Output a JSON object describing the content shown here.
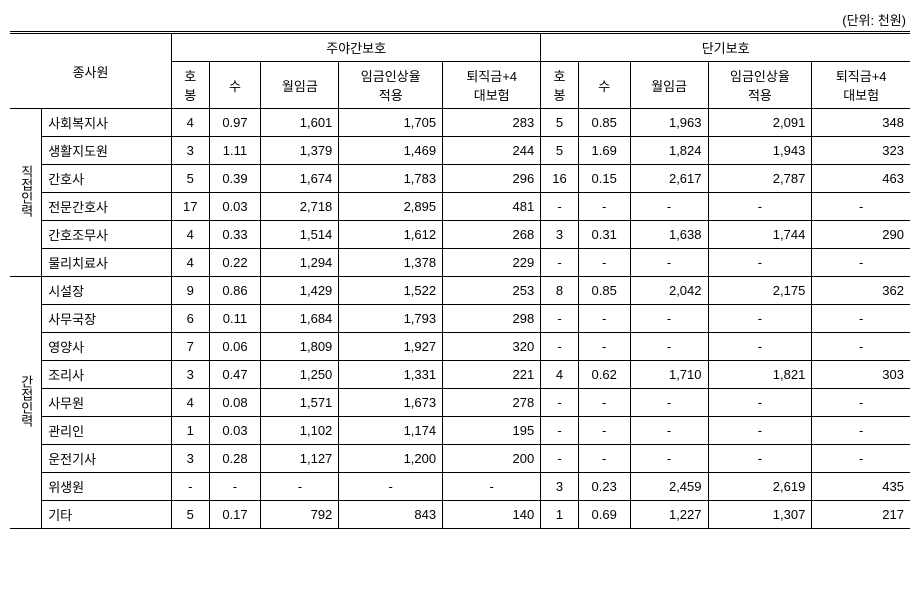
{
  "unit_label": "(단위: 천원)",
  "headers": {
    "staff": "종사원",
    "group1": "주야간보호",
    "group2": "단기보호",
    "hb": "호봉",
    "hb_line1": "호",
    "hb_line2": "봉",
    "su": "수",
    "wage": "월임금",
    "adj": "임금인상율적용",
    "adj_line1": "임금인상율",
    "adj_line2": "적용",
    "ret": "퇴직금+4대보험",
    "ret_line1": "퇴직금+4",
    "ret_line2": "대보험"
  },
  "categories": {
    "direct": "직접인력",
    "indirect": "간접인력"
  },
  "rows": [
    {
      "cat": "direct",
      "role": "사회복지사",
      "g1": {
        "hb": "4",
        "su": "0.97",
        "wage": "1,601",
        "adj": "1,705",
        "ret": "283"
      },
      "g2": {
        "hb": "5",
        "su": "0.85",
        "wage": "1,963",
        "adj": "2,091",
        "ret": "348"
      }
    },
    {
      "cat": "direct",
      "role": "생활지도원",
      "g1": {
        "hb": "3",
        "su": "1.11",
        "wage": "1,379",
        "adj": "1,469",
        "ret": "244"
      },
      "g2": {
        "hb": "5",
        "su": "1.69",
        "wage": "1,824",
        "adj": "1,943",
        "ret": "323"
      }
    },
    {
      "cat": "direct",
      "role": "간호사",
      "g1": {
        "hb": "5",
        "su": "0.39",
        "wage": "1,674",
        "adj": "1,783",
        "ret": "296"
      },
      "g2": {
        "hb": "16",
        "su": "0.15",
        "wage": "2,617",
        "adj": "2,787",
        "ret": "463"
      }
    },
    {
      "cat": "direct",
      "role": "전문간호사",
      "g1": {
        "hb": "17",
        "su": "0.03",
        "wage": "2,718",
        "adj": "2,895",
        "ret": "481"
      },
      "g2": {
        "hb": "-",
        "su": "-",
        "wage": "-",
        "adj": "-",
        "ret": "-"
      }
    },
    {
      "cat": "direct",
      "role": "간호조무사",
      "g1": {
        "hb": "4",
        "su": "0.33",
        "wage": "1,514",
        "adj": "1,612",
        "ret": "268"
      },
      "g2": {
        "hb": "3",
        "su": "0.31",
        "wage": "1,638",
        "adj": "1,744",
        "ret": "290"
      }
    },
    {
      "cat": "direct",
      "role": "물리치료사",
      "g1": {
        "hb": "4",
        "su": "0.22",
        "wage": "1,294",
        "adj": "1,378",
        "ret": "229"
      },
      "g2": {
        "hb": "-",
        "su": "-",
        "wage": "-",
        "adj": "-",
        "ret": "-"
      }
    },
    {
      "cat": "indirect",
      "role": "시설장",
      "g1": {
        "hb": "9",
        "su": "0.86",
        "wage": "1,429",
        "adj": "1,522",
        "ret": "253"
      },
      "g2": {
        "hb": "8",
        "su": "0.85",
        "wage": "2,042",
        "adj": "2,175",
        "ret": "362"
      }
    },
    {
      "cat": "indirect",
      "role": "사무국장",
      "g1": {
        "hb": "6",
        "su": "0.11",
        "wage": "1,684",
        "adj": "1,793",
        "ret": "298"
      },
      "g2": {
        "hb": "-",
        "su": "-",
        "wage": "-",
        "adj": "-",
        "ret": "-"
      }
    },
    {
      "cat": "indirect",
      "role": "영양사",
      "g1": {
        "hb": "7",
        "su": "0.06",
        "wage": "1,809",
        "adj": "1,927",
        "ret": "320"
      },
      "g2": {
        "hb": "-",
        "su": "-",
        "wage": "-",
        "adj": "-",
        "ret": "-"
      }
    },
    {
      "cat": "indirect",
      "role": "조리사",
      "g1": {
        "hb": "3",
        "su": "0.47",
        "wage": "1,250",
        "adj": "1,331",
        "ret": "221"
      },
      "g2": {
        "hb": "4",
        "su": "0.62",
        "wage": "1,710",
        "adj": "1,821",
        "ret": "303"
      }
    },
    {
      "cat": "indirect",
      "role": "사무원",
      "g1": {
        "hb": "4",
        "su": "0.08",
        "wage": "1,571",
        "adj": "1,673",
        "ret": "278"
      },
      "g2": {
        "hb": "-",
        "su": "-",
        "wage": "-",
        "adj": "-",
        "ret": "-"
      }
    },
    {
      "cat": "indirect",
      "role": "관리인",
      "g1": {
        "hb": "1",
        "su": "0.03",
        "wage": "1,102",
        "adj": "1,174",
        "ret": "195"
      },
      "g2": {
        "hb": "-",
        "su": "-",
        "wage": "-",
        "adj": "-",
        "ret": "-"
      }
    },
    {
      "cat": "indirect",
      "role": "운전기사",
      "g1": {
        "hb": "3",
        "su": "0.28",
        "wage": "1,127",
        "adj": "1,200",
        "ret": "200"
      },
      "g2": {
        "hb": "-",
        "su": "-",
        "wage": "-",
        "adj": "-",
        "ret": "-"
      }
    },
    {
      "cat": "indirect",
      "role": "위생원",
      "g1": {
        "hb": "-",
        "su": "-",
        "wage": "-",
        "adj": "-",
        "ret": "-"
      },
      "g2": {
        "hb": "3",
        "su": "0.23",
        "wage": "2,459",
        "adj": "2,619",
        "ret": "435"
      }
    },
    {
      "cat": "indirect",
      "role": "기타",
      "g1": {
        "hb": "5",
        "su": "0.17",
        "wage": "792",
        "adj": "843",
        "ret": "140"
      },
      "g2": {
        "hb": "1",
        "su": "0.69",
        "wage": "1,227",
        "adj": "1,307",
        "ret": "217"
      }
    }
  ],
  "direct_count": 6,
  "indirect_count": 9
}
